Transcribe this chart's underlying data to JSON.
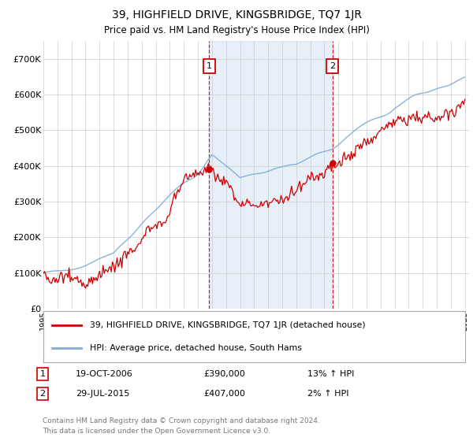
{
  "title": "39, HIGHFIELD DRIVE, KINGSBRIDGE, TQ7 1JR",
  "subtitle": "Price paid vs. HM Land Registry's House Price Index (HPI)",
  "ylim": [
    0,
    750000
  ],
  "yticks": [
    0,
    100000,
    200000,
    300000,
    400000,
    500000,
    600000,
    700000
  ],
  "ytick_labels": [
    "£0",
    "£100K",
    "£200K",
    "£300K",
    "£400K",
    "£500K",
    "£600K",
    "£700K"
  ],
  "hpi_color": "#7aabdb",
  "price_color": "#cc0000",
  "t1_date": 2006.8,
  "t1_price": 390000,
  "t2_date": 2015.58,
  "t2_price": 407000,
  "legend_line1": "39, HIGHFIELD DRIVE, KINGSBRIDGE, TQ7 1JR (detached house)",
  "legend_line2": "HPI: Average price, detached house, South Hams",
  "tx1_date_str": "19-OCT-2006",
  "tx1_price_str": "£390,000",
  "tx1_hpi_str": "13% ↑ HPI",
  "tx2_date_str": "29-JUL-2015",
  "tx2_price_str": "£407,000",
  "tx2_hpi_str": "2% ↑ HPI",
  "footer": "Contains HM Land Registry data © Crown copyright and database right 2024.\nThis data is licensed under the Open Government Licence v3.0."
}
